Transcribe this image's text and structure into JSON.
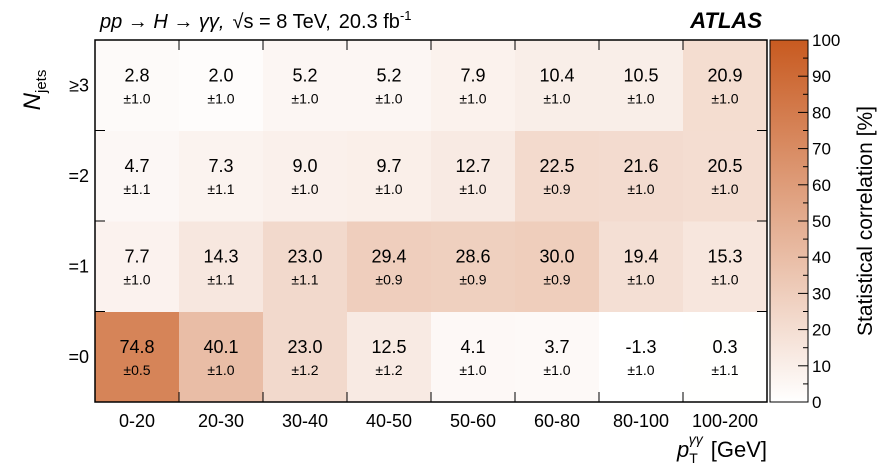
{
  "chart_data": {
    "type": "heatmap",
    "title": "pp → H → γγ,  √s = 8 TeV,  20.3 fb",
    "title_parts": {
      "process": "pp → H → γγ,",
      "energy": "√s = 8 TeV,",
      "lumi": "20.3 fb",
      "lumi_exp": "-1"
    },
    "experiment": "ATLAS",
    "xlabel": {
      "main": "p",
      "sub": "T",
      "sup": "γγ",
      "unit": "[GeV]"
    },
    "ylabel": {
      "main": "N",
      "sub": "jets"
    },
    "x_categories": [
      "0-20",
      "20-30",
      "30-40",
      "40-50",
      "50-60",
      "60-80",
      "80-100",
      "100-200"
    ],
    "y_categories": [
      "=0",
      "=1",
      "=2",
      "≥3"
    ],
    "values": [
      [
        74.8,
        40.1,
        23.0,
        12.5,
        4.1,
        3.7,
        -1.3,
        0.3
      ],
      [
        7.7,
        14.3,
        23.0,
        29.4,
        28.6,
        30.0,
        19.4,
        15.3
      ],
      [
        4.7,
        7.3,
        9.0,
        9.7,
        12.7,
        22.5,
        21.6,
        20.5
      ],
      [
        2.8,
        2.0,
        5.2,
        5.2,
        7.9,
        10.4,
        10.5,
        20.9
      ]
    ],
    "errors": [
      [
        0.5,
        1.0,
        1.2,
        1.2,
        1.0,
        1.0,
        1.0,
        1.1
      ],
      [
        1.0,
        1.1,
        1.1,
        0.9,
        0.9,
        0.9,
        1.0,
        1.0
      ],
      [
        1.1,
        1.1,
        1.0,
        1.0,
        1.0,
        0.9,
        1.0,
        1.0
      ],
      [
        1.0,
        1.0,
        1.0,
        1.0,
        1.0,
        1.0,
        1.0,
        1.0
      ]
    ],
    "colorbar": {
      "label": "Statistical correlation [%]",
      "range": [
        0,
        100
      ],
      "ticks": [
        0,
        10,
        20,
        30,
        40,
        50,
        60,
        70,
        80,
        90,
        100
      ],
      "color_low": "#ffffff",
      "color_high": "#c85a20"
    }
  }
}
